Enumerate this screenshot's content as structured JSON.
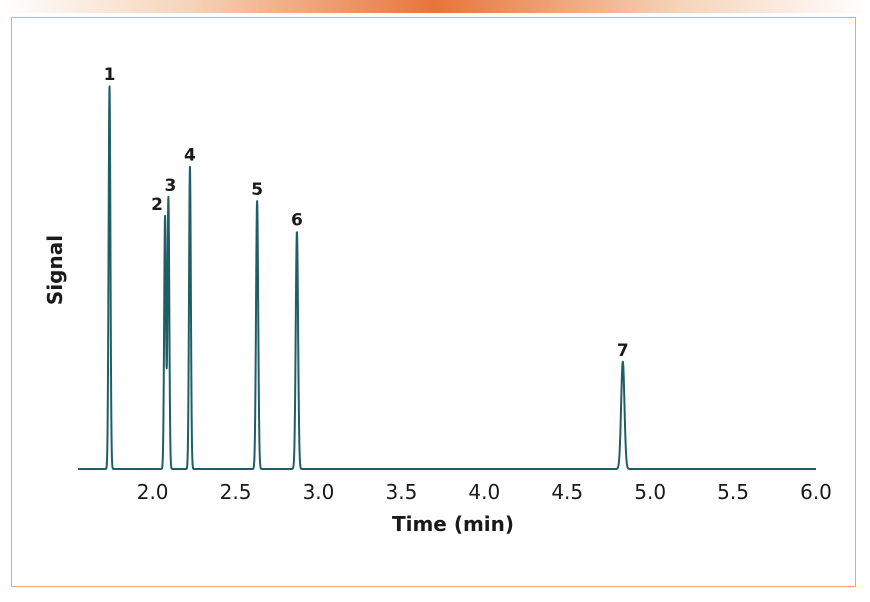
{
  "chart_data": {
    "type": "line",
    "title": "",
    "xlabel": "Time (min)",
    "ylabel": "Signal",
    "xlim": [
      1.55,
      6.0
    ],
    "x_ticks": [
      "2.0",
      "2.5",
      "3.0",
      "3.5",
      "4.0",
      "4.5",
      "5.0",
      "5.5",
      "6.0"
    ],
    "y_scale": "relative (0–1)",
    "grid": false,
    "line_color": "#1f5e66",
    "peaks": [
      {
        "label": "1",
        "time": 1.74,
        "height": 1.0,
        "width": 0.0055
      },
      {
        "label": "2",
        "time": 2.075,
        "height": 0.66,
        "width": 0.0055
      },
      {
        "label": "3",
        "time": 2.095,
        "height": 0.71,
        "width": 0.0055
      },
      {
        "label": "4",
        "time": 2.225,
        "height": 0.79,
        "width": 0.0055
      },
      {
        "label": "5",
        "time": 2.63,
        "height": 0.7,
        "width": 0.0065
      },
      {
        "label": "6",
        "time": 2.87,
        "height": 0.62,
        "width": 0.007
      },
      {
        "label": "7",
        "time": 4.835,
        "height": 0.28,
        "width": 0.01
      }
    ]
  }
}
